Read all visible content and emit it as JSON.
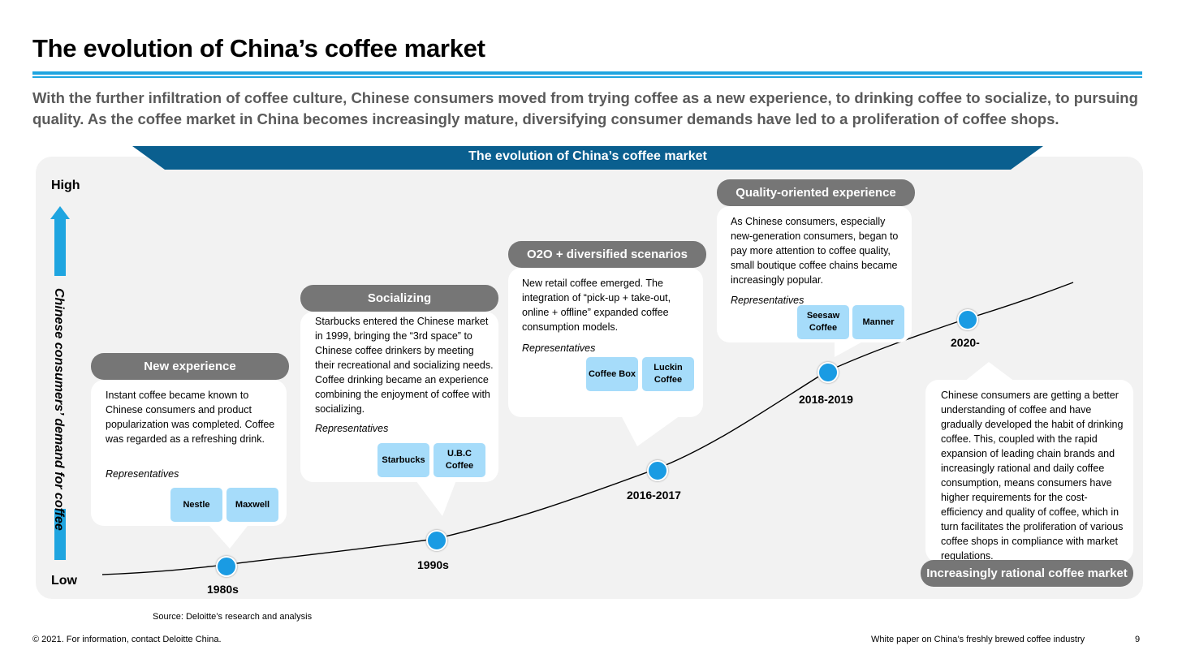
{
  "page": {
    "title": "The evolution of China’s coffee market",
    "subtitle": "With the further infiltration of coffee culture, Chinese consumers moved from trying coffee as a new experience, to drinking coffee to socialize, to pursuing quality. As the coffee market in China becomes increasingly mature, diversifying consumer demands have led to a proliferation of coffee shops."
  },
  "diagram": {
    "banner": "The evolution of China’s coffee market",
    "axis": {
      "high": "High",
      "low": "Low",
      "label": "Chinese consumers’ demand for coffee"
    },
    "stages": [
      {
        "name": "New experience",
        "text": "Instant coffee became known to Chinese consumers and product popularization was completed. Coffee was regarded as a refreshing drink.",
        "rep_label": "Representatives",
        "brands": [
          "Nestle",
          "Maxwell"
        ],
        "year": "1980s"
      },
      {
        "name": "Socializing",
        "text": "Starbucks entered the Chinese market in 1999, bringing the “3rd space” to Chinese coffee drinkers by meeting their recreational and socializing needs. Coffee drinking became an experience combining the enjoyment of coffee with socializing.",
        "rep_label": "Representatives",
        "brands": [
          "Starbucks",
          "U.B.C Coffee"
        ],
        "year": "1990s"
      },
      {
        "name": "O2O + diversified scenarios",
        "text": "New retail coffee emerged. The integration of “pick-up + take-out, online + offline” expanded coffee consumption models.",
        "rep_label": "Representatives",
        "brands": [
          "Coffee Box",
          "Luckin Coffee"
        ],
        "year": "2016-2017"
      },
      {
        "name": "Quality-oriented experience",
        "text": "As Chinese consumers, especially new-generation consumers, began to pay more attention to coffee quality, small boutique coffee chains became increasingly popular.",
        "rep_label": "Representatives",
        "brands": [
          "Seesaw Coffee",
          "Manner"
        ],
        "year": "2018-2019"
      },
      {
        "name": "Increasingly rational coffee market",
        "text": "Chinese consumers are getting a better understanding of coffee and have gradually developed the habit of drinking coffee. This, coupled with the rapid expansion of leading chain brands and increasingly rational and daily coffee consumption, means consumers have higher requirements for the cost-efficiency and quality of coffee, which in turn facilitates the proliferation of various coffee shops in compliance with market regulations.",
        "year": "2020-"
      }
    ],
    "source": "Source: Deloitte’s research and analysis"
  },
  "footer": {
    "left": "© 2021. For information, contact Deloitte China.",
    "right": "White paper on China’s freshly brewed coffee industry",
    "page_number": "9"
  },
  "colors": {
    "accent": "#1fa5e0",
    "banner": "#0a5f8f",
    "pill": "#767676",
    "brand": "#a6dcfa",
    "dot": "#1a9be3"
  }
}
